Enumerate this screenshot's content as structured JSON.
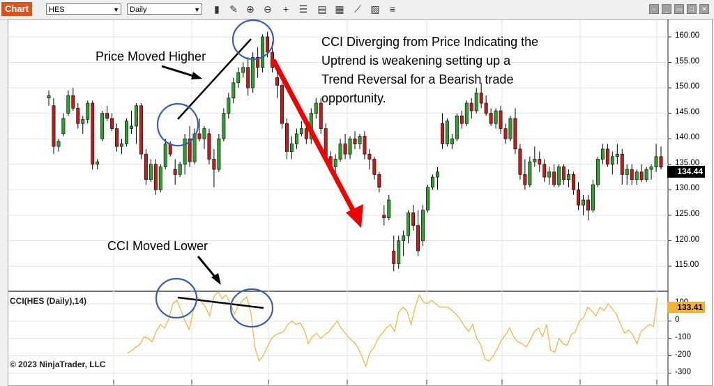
{
  "toolbar": {
    "tab_label": "Chart",
    "instrument": "HES",
    "interval": "Daily",
    "icons": [
      "bar-type-icon",
      "draw-pencil-icon",
      "zoom-in-icon",
      "zoom-out-icon",
      "crosshair-icon",
      "properties-icon",
      "template-icon",
      "strategy-icon",
      "data-series-icon",
      "indicator-icon",
      "chart-trader-icon",
      "list-icon"
    ],
    "window_buttons": [
      "minimize",
      "restore",
      "maximize",
      "close"
    ]
  },
  "annotations": {
    "main": [
      "CCI Diverging from Price Indicating the",
      "Uptrend is weakening setting up a",
      "Trend Reversal for a Bearish trade",
      "opportunity."
    ],
    "price": "Price Moved Higher",
    "cci": "CCI Moved Lower"
  },
  "indicator_label": "CCI(HES (Daily),14)",
  "copyright": "© 2023 NinjaTrader, LLC",
  "colors": {
    "up": "#2ca02c",
    "down": "#c41a1a",
    "cci": "#f0b23a",
    "arrow": "#ee0000",
    "circle": "#3a5fa8"
  },
  "chart_data": [
    {
      "type": "candlestick",
      "instrument": "HES",
      "interval": "Daily",
      "ylim": [
        110.5,
        163
      ],
      "yticks": [
        "160.00",
        "155.00",
        "150.00",
        "145.00",
        "140.00",
        "135.00",
        "130.00",
        "125.00",
        "120.00",
        "115.00"
      ],
      "last_price": "134.44",
      "grid": true,
      "candles": [
        [
          148,
          149.5,
          146.5,
          148.5
        ],
        [
          146.5,
          148,
          137,
          138.5
        ],
        [
          138.5,
          140,
          137.5,
          139.5
        ],
        [
          141,
          145,
          140.5,
          144
        ],
        [
          145,
          149.5,
          144.5,
          148.5
        ],
        [
          148.5,
          150,
          145.5,
          146
        ],
        [
          146,
          147,
          142,
          143
        ],
        [
          143,
          144.5,
          141,
          143.8
        ],
        [
          143.8,
          147.5,
          143,
          147
        ],
        [
          147,
          147.5,
          134,
          135
        ],
        [
          135,
          136,
          134,
          135.5
        ],
        [
          140,
          145.5,
          139.5,
          145
        ],
        [
          145,
          146.5,
          143.5,
          144
        ],
        [
          144,
          145,
          141.5,
          142
        ],
        [
          142,
          143,
          137.5,
          138.5
        ],
        [
          138.5,
          140,
          137,
          139
        ],
        [
          139,
          144,
          138.5,
          143.5
        ],
        [
          142,
          145.5,
          141,
          142.5
        ],
        [
          142.5,
          147,
          139,
          146.5
        ],
        [
          146.5,
          147,
          136,
          137
        ],
        [
          137,
          138,
          131,
          132
        ],
        [
          132,
          136,
          131.5,
          135
        ],
        [
          135,
          136,
          129,
          130
        ],
        [
          130,
          135,
          129.5,
          134.5
        ],
        [
          134.5,
          140,
          134,
          139
        ],
        [
          139,
          139.5,
          136.5,
          137
        ],
        [
          134,
          136,
          131,
          133
        ],
        [
          133,
          135.5,
          132.5,
          135
        ],
        [
          135,
          141,
          133,
          140
        ],
        [
          140,
          142.5,
          134.5,
          135.5
        ],
        [
          135.5,
          142,
          135,
          141
        ],
        [
          141,
          144,
          139.5,
          140
        ],
        [
          140,
          142.5,
          138,
          142
        ],
        [
          141,
          142,
          135,
          136
        ],
        [
          136,
          138,
          130.5,
          134
        ],
        [
          134,
          141,
          133.5,
          140
        ],
        [
          140,
          146,
          139.5,
          145
        ],
        [
          145,
          149,
          144,
          148
        ],
        [
          148,
          152,
          147,
          151
        ],
        [
          151,
          154,
          150,
          153
        ],
        [
          153,
          155,
          152,
          154
        ],
        [
          154,
          156,
          148.5,
          150
        ],
        [
          150,
          157,
          149,
          156
        ],
        [
          156,
          158,
          152,
          154
        ],
        [
          154,
          160.5,
          153,
          160
        ],
        [
          160,
          161,
          156,
          157
        ],
        [
          157,
          159,
          153,
          154
        ],
        [
          152,
          153.5,
          148,
          150.5
        ],
        [
          150.5,
          151,
          142,
          143
        ],
        [
          143,
          144,
          136,
          137.5
        ],
        [
          137.5,
          140.5,
          136,
          139
        ],
        [
          139,
          142,
          138,
          141
        ],
        [
          141,
          143.5,
          140.5,
          142
        ],
        [
          142,
          144,
          139,
          140
        ],
        [
          140,
          146,
          139,
          145
        ],
        [
          145,
          148,
          144,
          147
        ],
        [
          147,
          148,
          141,
          142
        ],
        [
          142,
          143,
          135.5,
          136.5
        ],
        [
          136.5,
          137.5,
          133.5,
          134.5
        ],
        [
          134.5,
          137,
          133,
          136
        ],
        [
          136,
          140,
          135.5,
          139
        ],
        [
          139,
          141,
          136,
          137
        ],
        [
          137,
          140.5,
          136,
          140
        ],
        [
          140,
          141.5,
          138,
          139
        ],
        [
          139,
          141,
          138,
          140.5
        ],
        [
          140.5,
          141.5,
          136,
          137
        ],
        [
          137,
          138,
          134,
          136
        ],
        [
          136,
          136.5,
          132,
          133
        ],
        [
          133,
          133.5,
          129.5,
          130.5
        ],
        [
          125,
          127,
          123,
          124.5
        ],
        [
          124.5,
          129,
          124,
          128
        ],
        [
          118,
          121,
          114,
          115.5
        ],
        [
          115.5,
          121,
          114.5,
          120
        ],
        [
          120,
          122,
          117,
          121
        ],
        [
          121,
          126,
          119.5,
          125.5
        ],
        [
          125.5,
          127,
          122,
          123
        ],
        [
          123,
          126,
          117,
          118
        ],
        [
          120,
          127,
          119,
          126
        ],
        [
          126,
          131,
          125.5,
          130.5
        ],
        [
          130.5,
          133,
          130,
          132.5
        ],
        [
          132.5,
          134.5,
          130,
          133.5
        ],
        [
          143,
          145,
          138,
          139
        ],
        [
          139,
          144,
          138.5,
          143.5
        ],
        [
          139,
          141,
          138,
          140
        ],
        [
          140,
          145,
          139.5,
          144.5
        ],
        [
          144.5,
          145.5,
          142,
          143
        ],
        [
          143,
          147.5,
          142.5,
          147
        ],
        [
          147,
          148,
          144,
          145.5
        ],
        [
          145.5,
          150,
          145,
          149
        ],
        [
          149,
          151,
          146,
          147
        ],
        [
          147,
          148.5,
          144.5,
          145
        ],
        [
          145,
          146,
          142.5,
          143
        ],
        [
          143,
          146,
          142,
          145.5
        ],
        [
          145.5,
          146.5,
          141,
          142
        ],
        [
          142,
          143,
          139,
          140
        ],
        [
          140,
          144.5,
          139.5,
          144
        ],
        [
          144,
          146,
          137,
          138
        ],
        [
          138,
          139,
          132,
          133
        ],
        [
          133,
          136,
          130,
          131
        ],
        [
          131,
          136.5,
          130.5,
          135.5
        ],
        [
          135.5,
          138.5,
          134.5,
          136
        ],
        [
          136,
          137.5,
          133.5,
          135
        ],
        [
          135,
          136,
          131.5,
          132.5
        ],
        [
          132.5,
          134.5,
          131,
          133.5
        ],
        [
          133.5,
          135,
          130.5,
          131
        ],
        [
          131,
          135,
          130.5,
          134.5
        ],
        [
          134.5,
          135,
          131,
          132
        ],
        [
          132,
          134,
          130.5,
          133
        ],
        [
          133,
          133.5,
          129,
          130
        ],
        [
          130,
          131.5,
          126,
          127
        ],
        [
          127,
          129,
          125,
          128
        ],
        [
          128,
          129,
          124,
          126
        ],
        [
          126,
          132,
          125.5,
          131
        ],
        [
          131,
          136.5,
          130.5,
          136
        ],
        [
          136,
          139,
          135,
          138
        ],
        [
          138,
          139,
          134.5,
          135
        ],
        [
          135,
          137.5,
          133,
          136.5
        ],
        [
          136.5,
          139,
          135,
          137
        ],
        [
          137,
          138,
          131,
          133
        ],
        [
          133,
          135,
          131,
          134
        ],
        [
          134,
          135,
          131,
          132
        ],
        [
          132,
          134,
          131,
          133.5
        ],
        [
          133.5,
          135,
          131.5,
          132
        ],
        [
          132,
          134.5,
          131.5,
          134
        ],
        [
          134,
          135,
          132,
          134.5
        ],
        [
          134.5,
          139,
          133.5,
          136.5
        ],
        [
          136.5,
          138.5,
          134,
          134.44
        ]
      ]
    },
    {
      "type": "line",
      "name": "CCI(HES (Daily),14)",
      "ylim": [
        -310,
        160
      ],
      "yticks": [
        "100",
        "0",
        "-100",
        "-200",
        "-300"
      ],
      "last_value": "133.41",
      "values": [
        -185,
        -170,
        -150,
        -135,
        -90,
        -100,
        -120,
        -60,
        -20,
        -40,
        10,
        100,
        120,
        60,
        0,
        -50,
        60,
        140,
        110,
        80,
        30,
        140,
        170,
        130,
        150,
        100,
        40,
        90,
        120,
        140,
        50,
        -150,
        -230,
        -200,
        -150,
        -100,
        -80,
        -70,
        -60,
        -20,
        0,
        -20,
        -10,
        -50,
        -130,
        -90,
        -70,
        -100,
        -80,
        -60,
        -30,
        0,
        -40,
        -70,
        -100,
        -120,
        -150,
        -200,
        -260,
        -180,
        -150,
        -100,
        -70,
        -40,
        -20,
        -60,
        50,
        80,
        60,
        -20,
        80,
        150,
        110,
        100,
        120,
        100,
        80,
        80,
        80,
        60,
        40,
        10,
        -30,
        -60,
        -20,
        -100,
        -140,
        -220,
        -230,
        -200,
        -160,
        -110,
        -80,
        -40,
        -90,
        -120,
        -130,
        -150,
        -110,
        -60,
        -40,
        -90,
        -20,
        -170,
        -180,
        -100,
        -130,
        -140,
        -80,
        -60,
        0,
        20,
        80,
        60,
        30,
        80,
        60,
        100,
        70,
        40,
        -20,
        -70,
        -50,
        -80,
        -130,
        -60,
        -40,
        -20,
        -30,
        133.41
      ]
    }
  ]
}
